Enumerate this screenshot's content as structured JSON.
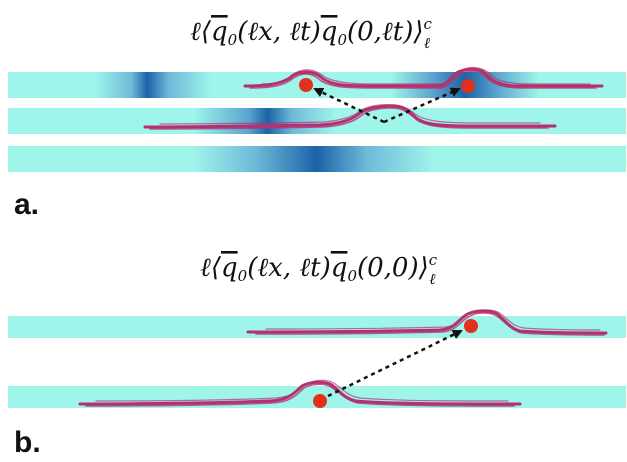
{
  "panels": [
    {
      "label": "a.",
      "formula": {
        "prefix": "ℓ⟨",
        "q1": "q",
        "q1_sub": "0",
        "args1": "(ℓx, ℓt)",
        "q2": "q",
        "q2_sub": "0",
        "args2": "(0,ℓt)",
        "suffix": "⟩",
        "sup": "c",
        "sub": "ℓ"
      }
    },
    {
      "label": "b.",
      "formula": {
        "prefix": "ℓ⟨",
        "q1": "q",
        "q1_sub": "0",
        "args1": "(ℓx, ℓt)",
        "q2": "q",
        "q2_sub": "0",
        "args2": "(0,0)",
        "suffix": "⟩",
        "sup": "c",
        "sub": "ℓ"
      }
    }
  ],
  "colors": {
    "band": "#9ff5ea",
    "band_dark": "#1b63a8",
    "line": "#b4306e",
    "dot": "#e0301e",
    "arrow": "#111111"
  }
}
